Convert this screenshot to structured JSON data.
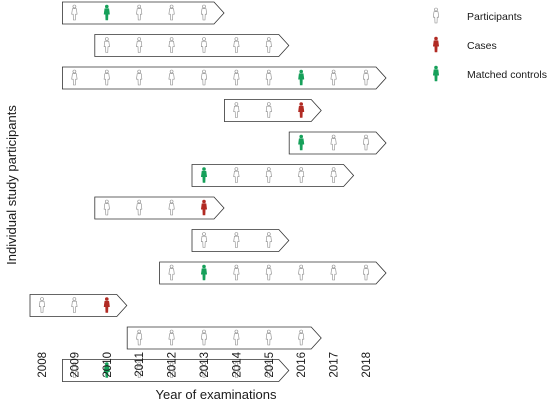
{
  "chart_data": {
    "type": "timeline",
    "ylabel": "Individual study participants",
    "xlabel": "Year of examinations",
    "years": [
      "2008",
      "2009",
      "2010",
      "2011",
      "2012",
      "2013",
      "2014",
      "2015",
      "2016",
      "2017",
      "2018"
    ],
    "legend": [
      {
        "key": "participant",
        "label": "Participants",
        "color": "#ffffff"
      },
      {
        "key": "case",
        "label": "Cases",
        "color": "#b12a23"
      },
      {
        "key": "control",
        "label": "Matched controls",
        "color": "#16a05a"
      }
    ],
    "participants": [
      {
        "start": 2009,
        "end": 2013,
        "marks": {
          "2010": "control"
        }
      },
      {
        "start": 2010,
        "end": 2015,
        "marks": {}
      },
      {
        "start": 2009,
        "end": 2018,
        "marks": {
          "2016": "control"
        }
      },
      {
        "start": 2014,
        "end": 2016,
        "marks": {
          "2016": "case"
        }
      },
      {
        "start": 2016,
        "end": 2018,
        "marks": {
          "2016": "control"
        }
      },
      {
        "start": 2013,
        "end": 2017,
        "marks": {
          "2013": "control"
        }
      },
      {
        "start": 2010,
        "end": 2013,
        "marks": {
          "2013": "case"
        }
      },
      {
        "start": 2013,
        "end": 2015,
        "marks": {}
      },
      {
        "start": 2012,
        "end": 2018,
        "marks": {
          "2013": "control"
        }
      },
      {
        "start": 2008,
        "end": 2010,
        "marks": {
          "2010": "case"
        }
      },
      {
        "start": 2011,
        "end": 2016,
        "marks": {}
      },
      {
        "start": 2009,
        "end": 2015,
        "marks": {
          "2010": "control"
        }
      }
    ]
  }
}
